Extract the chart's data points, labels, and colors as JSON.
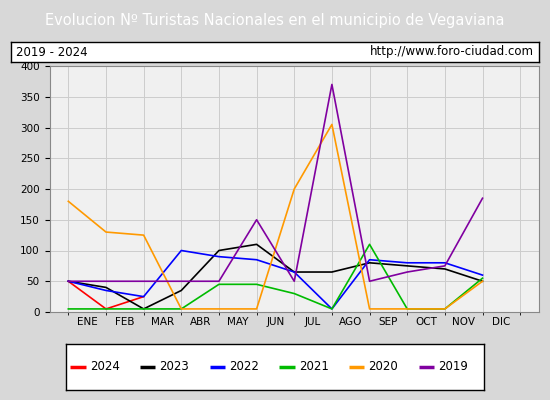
{
  "title": "Evolucion Nº Turistas Nacionales en el municipio de Vegaviana",
  "subtitle_left": "2019 - 2024",
  "subtitle_right": "http://www.foro-ciudad.com",
  "title_bg_color": "#4a86c8",
  "title_text_color": "#ffffff",
  "months": [
    "ENE",
    "FEB",
    "MAR",
    "ABR",
    "MAY",
    "JUN",
    "JUL",
    "AGO",
    "SEP",
    "OCT",
    "NOV",
    "DIC"
  ],
  "ylim": [
    0,
    400
  ],
  "yticks": [
    0,
    50,
    100,
    150,
    200,
    250,
    300,
    350,
    400
  ],
  "series": {
    "2024": {
      "color": "#ff0000",
      "data": [
        50,
        5,
        25,
        null,
        null,
        null,
        null,
        null,
        null,
        null,
        null,
        null
      ]
    },
    "2023": {
      "color": "#000000",
      "data": [
        50,
        40,
        5,
        35,
        100,
        110,
        65,
        65,
        80,
        75,
        70,
        50
      ]
    },
    "2022": {
      "color": "#0000ff",
      "data": [
        50,
        35,
        25,
        100,
        90,
        85,
        65,
        5,
        85,
        80,
        80,
        60
      ]
    },
    "2021": {
      "color": "#00bb00",
      "data": [
        5,
        5,
        5,
        5,
        45,
        45,
        30,
        5,
        110,
        5,
        5,
        55
      ]
    },
    "2020": {
      "color": "#ff9900",
      "data": [
        180,
        130,
        125,
        5,
        5,
        5,
        200,
        305,
        5,
        5,
        5,
        50
      ]
    },
    "2019": {
      "color": "#8000a0",
      "data": [
        50,
        50,
        50,
        50,
        50,
        150,
        50,
        370,
        50,
        65,
        75,
        185
      ]
    }
  },
  "legend_order": [
    "2024",
    "2023",
    "2022",
    "2021",
    "2020",
    "2019"
  ],
  "bg_color": "#d8d8d8",
  "plot_bg_color": "#f0f0f0",
  "grid_color": "#cccccc",
  "white_bg": "#ffffff"
}
